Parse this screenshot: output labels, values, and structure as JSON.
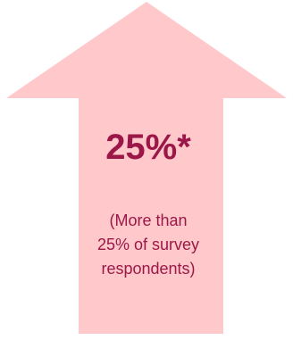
{
  "arrow": {
    "fill_color": "#ffc9cc",
    "text_color": "#9b1747",
    "icon": "up-arrow-icon"
  },
  "headline": "25%*",
  "caption": {
    "lines": [
      "(More than",
      "25% of survey",
      "respondents)"
    ]
  }
}
